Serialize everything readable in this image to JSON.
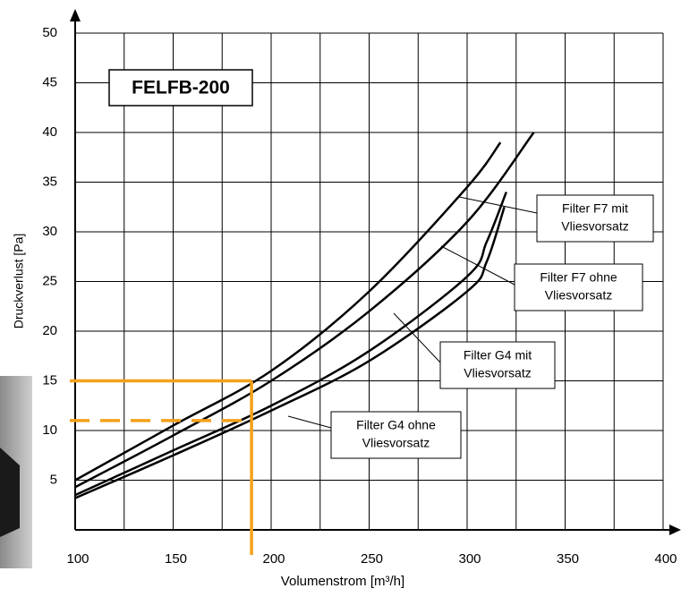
{
  "chart_data": {
    "type": "line",
    "title": "FELFB-200",
    "x_label": "Volumenstrom [m³/h]",
    "y_label": "Druckverlust [Pa]",
    "xlim": [
      100,
      400
    ],
    "ylim": [
      0,
      50
    ],
    "xticks": [
      100,
      150,
      200,
      250,
      300,
      350,
      400
    ],
    "yticks": [
      5,
      10,
      15,
      20,
      25,
      30,
      35,
      40,
      45,
      50
    ],
    "x_minor_grid": [
      125,
      175,
      225,
      275,
      325,
      375
    ],
    "grid": true,
    "series": [
      {
        "label_lines": [
          "Filter F7 mit",
          "Vliesvorsatz"
        ],
        "color": "#000000",
        "x": [
          100,
          150,
          200,
          250,
          300,
          317
        ],
        "values": [
          5,
          10.5,
          16,
          24,
          34.5,
          39
        ]
      },
      {
        "label_lines": [
          "Filter F7 ohne",
          "Vliesvorsatz"
        ],
        "color": "#000000",
        "x": [
          100,
          150,
          200,
          250,
          300,
          334
        ],
        "values": [
          4.3,
          9.5,
          15,
          22,
          31,
          40
        ]
      },
      {
        "label_lines": [
          "Filter G4 mit",
          "Vliesvorsatz"
        ],
        "color": "#000000",
        "x": [
          100,
          150,
          200,
          250,
          300,
          310,
          320
        ],
        "values": [
          3.5,
          8,
          12.5,
          18,
          25.5,
          29,
          34
        ]
      },
      {
        "label_lines": [
          "Filter G4 ohne",
          "Vliesvorsatz"
        ],
        "color": "#000000",
        "x": [
          100,
          150,
          200,
          250,
          300,
          310,
          319
        ],
        "values": [
          3.2,
          7.5,
          12,
          17,
          24,
          27,
          32.5
        ]
      }
    ],
    "reference": {
      "color": "#f5a01a",
      "x": 190,
      "y": 15,
      "y_dashed": 11
    }
  }
}
